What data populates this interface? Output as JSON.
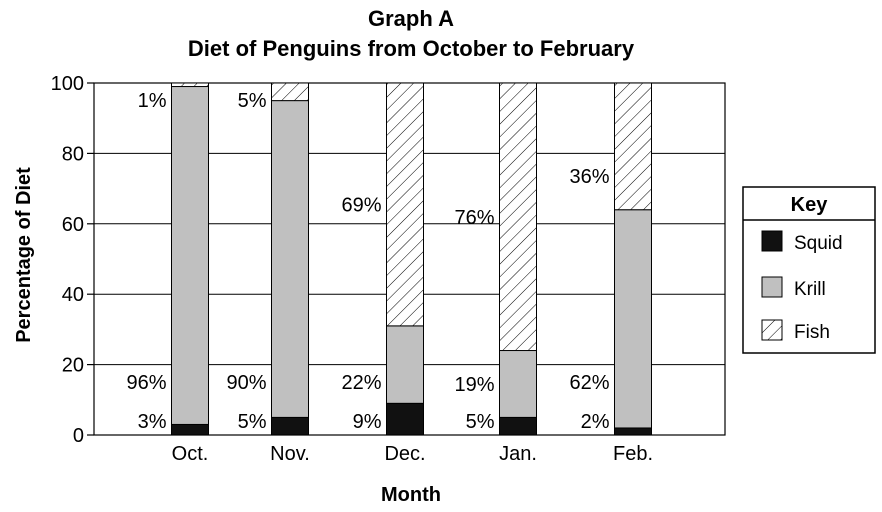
{
  "chart_data": {
    "type": "bar",
    "stacked": true,
    "title": "Graph A",
    "subtitle": "Diet of Penguins from October to February",
    "xlabel": "Month",
    "ylabel": "Percentage of Diet",
    "ylim": [
      0,
      100
    ],
    "yticks": [
      "0",
      "20",
      "40",
      "60",
      "80",
      "100"
    ],
    "grid": true,
    "legend_position": "right",
    "legend_title": "Key",
    "categories": [
      "Oct.",
      "Nov.",
      "Dec.",
      "Jan.",
      "Feb."
    ],
    "series": [
      {
        "name": "Squid",
        "fill": "#111111",
        "values": [
          3,
          5,
          9,
          5,
          2
        ],
        "labels": [
          "3%",
          "5%",
          "9%",
          "5%",
          "2%"
        ]
      },
      {
        "name": "Krill",
        "fill": "#c0c0c0",
        "values": [
          96,
          90,
          22,
          19,
          62
        ],
        "labels": [
          "96%",
          "90%",
          "22%",
          "19%",
          "62%"
        ]
      },
      {
        "name": "Fish",
        "fill": "hatch",
        "values": [
          1,
          5,
          69,
          76,
          36
        ],
        "labels": [
          "1%",
          "5%",
          "69%",
          "76%",
          "36%"
        ]
      }
    ]
  }
}
